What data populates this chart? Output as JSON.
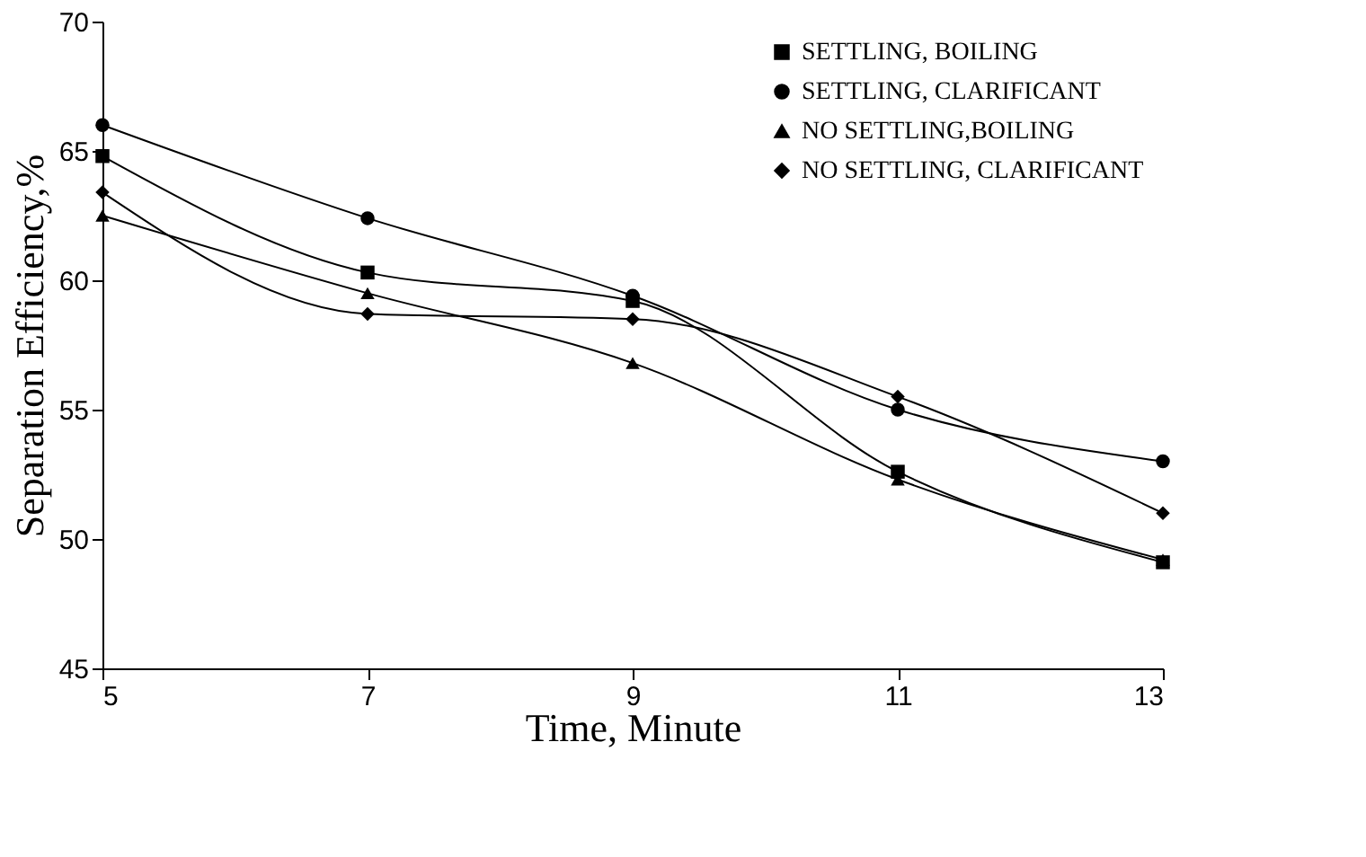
{
  "chart_data": {
    "type": "line",
    "xlabel": "Time, Minute",
    "ylabel": "Separation Efficiency,%",
    "x": [
      5,
      7,
      9,
      11,
      13
    ],
    "series": [
      {
        "name": "SETTLING, BOILING",
        "color": "#000000",
        "marker": "square",
        "values": [
          64.8,
          60.3,
          59.2,
          52.6,
          49.1
        ]
      },
      {
        "name": "SETTLING, CLARIFICANT",
        "color": "#000000",
        "marker": "circle",
        "values": [
          66.0,
          62.4,
          59.4,
          55.0,
          53.0
        ]
      },
      {
        "name": "NO SETTLING,BOILING",
        "color": "#000000",
        "marker": "triangle",
        "values": [
          62.5,
          59.5,
          56.8,
          52.3,
          49.2
        ]
      },
      {
        "name": "NO SETTLING, CLARIFICANT",
        "color": "#000000",
        "marker": "diamond",
        "values": [
          63.4,
          58.7,
          58.5,
          55.5,
          51.0
        ]
      }
    ],
    "xlim": [
      5,
      13
    ],
    "xticks": [
      5,
      7,
      9,
      11,
      13
    ],
    "ylim": [
      45,
      70
    ],
    "yticks": [
      45,
      50,
      55,
      60,
      65,
      70
    ],
    "grid": false,
    "legend": "top right",
    "line_style": "solid"
  }
}
